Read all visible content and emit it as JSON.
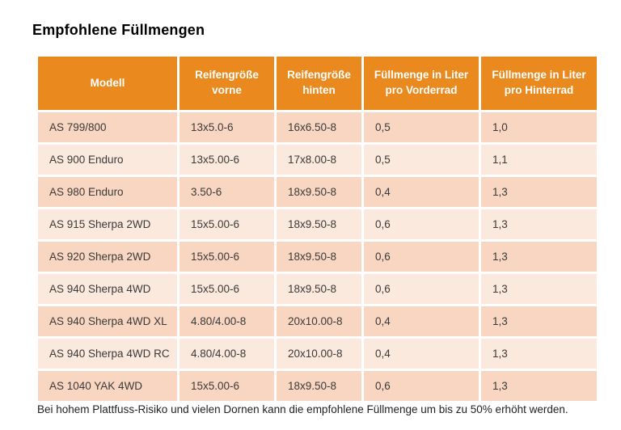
{
  "title": "Empfohlene Füllmengen",
  "table": {
    "headers": [
      "Modell",
      "Reifengröße vorne",
      "Reifengröße hinten",
      "Füllmenge in Liter pro Vorderrad",
      "Füllmenge in Liter pro Hinterrad"
    ],
    "rows": [
      [
        "AS 799/800",
        "13x5.0-6",
        "16x6.50-8",
        "0,5",
        "1,0"
      ],
      [
        "AS 900 Enduro",
        "13x5.00-6",
        "17x8.00-8",
        "0,5",
        "1,1"
      ],
      [
        "AS 980 Enduro",
        "3.50-6",
        "18x9.50-8",
        "0,4",
        "1,3"
      ],
      [
        "AS 915 Sherpa 2WD",
        "15x5.00-6",
        "18x9.50-8",
        "0,6",
        "1,3"
      ],
      [
        "AS 920 Sherpa 2WD",
        "15x5.00-6",
        "18x9.50-8",
        "0,6",
        "1,3"
      ],
      [
        "AS 940 Sherpa 4WD",
        "15x5.00-6",
        "18x9.50-8",
        "0,6",
        "1,3"
      ],
      [
        "AS 940 Sherpa 4WD XL",
        "4.80/4.00-8",
        "20x10.00-8",
        "0,4",
        "1,3"
      ],
      [
        "AS 940 Sherpa 4WD RC",
        "4.80/4.00-8",
        "20x10.00-8",
        "0,4",
        "1,3"
      ],
      [
        "AS 1040 YAK 4WD",
        "15x5.00-6",
        "18x9.50-8",
        "0,6",
        "1,3"
      ]
    ]
  },
  "footnote": "Bei hohem Plattfuss-Risiko und vielen Dornen kann die empfohlene Füllmenge um bis zu 50% erhöht werden.",
  "colors": {
    "header_bg": "#EA8A1E",
    "header_text": "#FFFFFF",
    "row_odd_bg": "#F8D6C1",
    "row_even_bg": "#FBE9DD",
    "body_text": "#3A3A3A",
    "page_bg": "#FFFFFF"
  }
}
